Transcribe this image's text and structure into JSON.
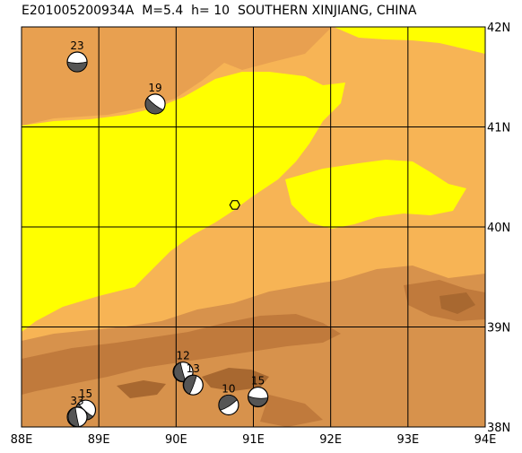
{
  "title": "E201005200934A  M=5.4  h= 10  SOUTHERN XINJIANG, CHINA",
  "axes": {
    "lon_min": 88,
    "lon_max": 94,
    "lat_min": 38,
    "lat_max": 42,
    "lon_ticks": [
      {
        "value": 88,
        "label": "88E"
      },
      {
        "value": 89,
        "label": "89E"
      },
      {
        "value": 90,
        "label": "90E"
      },
      {
        "value": 91,
        "label": "91E"
      },
      {
        "value": 92,
        "label": "92E"
      },
      {
        "value": 93,
        "label": "93E"
      },
      {
        "value": 94,
        "label": "94E"
      }
    ],
    "lat_ticks": [
      {
        "value": 42,
        "label": "42N"
      },
      {
        "value": 41,
        "label": "41N"
      },
      {
        "value": 40,
        "label": "40N"
      },
      {
        "value": 39,
        "label": "39N"
      },
      {
        "value": 38,
        "label": "38N"
      }
    ]
  },
  "epicenter": {
    "lon": 90.76,
    "lat": 40.22,
    "icon": "hexagon-icon"
  },
  "mechanisms": [
    {
      "label": "23",
      "lon": 88.72,
      "lat": 41.65
    },
    {
      "label": "19",
      "lon": 89.73,
      "lat": 41.23
    },
    {
      "label": "12",
      "lon": 90.09,
      "lat": 38.55
    },
    {
      "label": "13",
      "lon": 90.22,
      "lat": 38.42
    },
    {
      "label": "10",
      "lon": 90.68,
      "lat": 38.22
    },
    {
      "label": "15",
      "lon": 91.06,
      "lat": 38.3
    },
    {
      "label": "15",
      "lon": 88.83,
      "lat": 38.17
    },
    {
      "label": "33",
      "lon": 88.72,
      "lat": 38.1
    }
  ],
  "colors": {
    "yellow": "#ffff00",
    "orange_light": "#f7b455",
    "orange": "#e8a050",
    "orange_mid": "#d7924c",
    "orange_dark": "#c07a3c",
    "brown": "#a86830",
    "grid": "#000000"
  }
}
